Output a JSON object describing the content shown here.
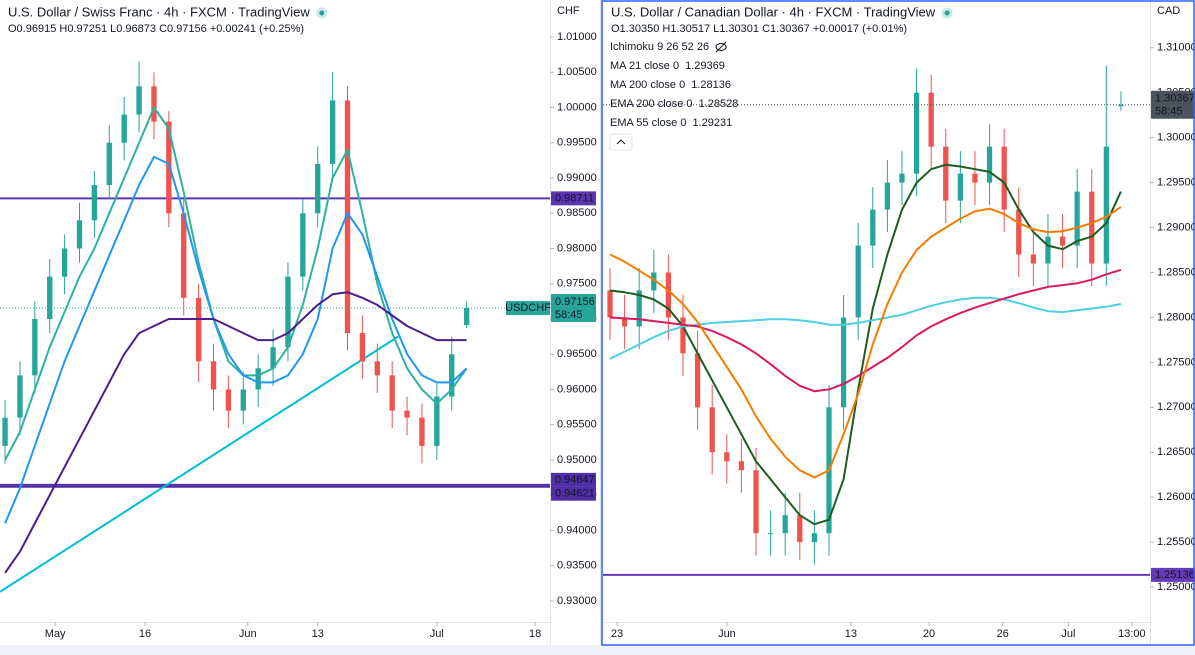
{
  "chart_data": [
    {
      "type": "candlestick",
      "title": "U.S. Dollar / Swiss Franc · 4h · FXCM · TradingView",
      "ohlc": "O0.96915 H0.97251 L0.96873 C0.97156 +0.00241 (+0.25%)",
      "unit": "CHF",
      "xlim": [
        -0.34,
        36.6
      ],
      "xticks": [
        {
          "value": 3.36,
          "label": "May"
        },
        {
          "value": 9.4,
          "label": "16"
        },
        {
          "value": 16.3,
          "label": "Jun"
        },
        {
          "value": 21,
          "label": "13"
        },
        {
          "value": 29,
          "label": "Jul"
        },
        {
          "value": 35.6,
          "label": "18"
        }
      ],
      "ylim": [
        0.9273,
        1.01525
      ],
      "yticks": [
        {
          "value": 0.93,
          "label": "0.93000"
        },
        {
          "value": 0.935,
          "label": "0.93500"
        },
        {
          "value": 0.94,
          "label": "0.94000"
        },
        {
          "value": 0.945,
          "label": "0.94500"
        },
        {
          "value": 0.95,
          "label": "0.95000"
        },
        {
          "value": 0.955,
          "label": "0.95500"
        },
        {
          "value": 0.96,
          "label": "0.96000"
        },
        {
          "value": 0.965,
          "label": "0.96500"
        },
        {
          "value": 0.97,
          "label": "0.97000"
        },
        {
          "value": 0.975,
          "label": "0.97500"
        },
        {
          "value": 0.98,
          "label": "0.98000"
        },
        {
          "value": 0.985,
          "label": "0.98500"
        },
        {
          "value": 0.99,
          "label": "0.99000"
        },
        {
          "value": 0.995,
          "label": "0.99500"
        },
        {
          "value": 1.0,
          "label": "1.00000"
        },
        {
          "value": 1.005,
          "label": "1.00500"
        },
        {
          "value": 1.01,
          "label": "1.01000"
        }
      ],
      "grid": false,
      "up_color": "#26a69a",
      "down_color": "#ef5350",
      "open": [
        0.952,
        0.956,
        0.962,
        0.97,
        0.976,
        0.98,
        0.984,
        0.989,
        0.995,
        0.999,
        1.003,
        0.998,
        0.985,
        0.973,
        0.964,
        0.96,
        0.957,
        0.96,
        0.963,
        0.966,
        0.976,
        0.985,
        0.992,
        1.001,
        0.968,
        0.964,
        0.962,
        0.957,
        0.956,
        0.952,
        0.959,
        0.96915
      ],
      "high": [
        0.9585,
        0.964,
        0.9725,
        0.9785,
        0.982,
        0.9865,
        0.991,
        0.9975,
        1.0015,
        1.0065,
        1.005,
        0.9995,
        0.987,
        0.975,
        0.9665,
        0.962,
        0.9625,
        0.965,
        0.9685,
        0.978,
        0.987,
        0.9945,
        1.005,
        1.003,
        0.9705,
        0.9665,
        0.964,
        0.959,
        0.958,
        0.961,
        0.9675,
        0.97251
      ],
      "low": [
        0.9495,
        0.9535,
        0.9595,
        0.968,
        0.9735,
        0.978,
        0.9815,
        0.987,
        0.9925,
        0.9965,
        0.9955,
        0.983,
        0.9705,
        0.961,
        0.957,
        0.9545,
        0.955,
        0.9575,
        0.9605,
        0.964,
        0.974,
        0.983,
        0.99,
        0.9655,
        0.9615,
        0.9595,
        0.9545,
        0.9535,
        0.9495,
        0.95,
        0.957,
        0.96873
      ],
      "close": [
        0.956,
        0.962,
        0.97,
        0.976,
        0.98,
        0.984,
        0.989,
        0.995,
        0.999,
        1.003,
        0.998,
        0.985,
        0.973,
        0.964,
        0.96,
        0.957,
        0.96,
        0.963,
        0.966,
        0.976,
        0.985,
        0.992,
        1.001,
        0.968,
        0.964,
        0.962,
        0.957,
        0.956,
        0.952,
        0.959,
        0.965,
        0.97156
      ],
      "series": [
        {
          "color": "#2bb3a0",
          "values": [
            0.95,
            0.954,
            0.96,
            0.966,
            0.971,
            0.976,
            0.98,
            0.985,
            0.99,
            0.995,
            1.0,
            0.997,
            0.988,
            0.978,
            0.97,
            0.964,
            0.962,
            0.962,
            0.963,
            0.966,
            0.972,
            0.98,
            0.99,
            0.994,
            0.985,
            0.975,
            0.968,
            0.963,
            0.96,
            0.958,
            0.96,
            0.963
          ]
        },
        {
          "color": "#2196f3",
          "values": [
            0.941,
            0.946,
            0.952,
            0.958,
            0.964,
            0.969,
            0.974,
            0.979,
            0.984,
            0.989,
            0.993,
            0.992,
            0.985,
            0.977,
            0.97,
            0.965,
            0.962,
            0.961,
            0.961,
            0.962,
            0.965,
            0.97,
            0.98,
            0.985,
            0.982,
            0.976,
            0.97,
            0.965,
            0.962,
            0.961,
            0.961,
            0.963
          ]
        },
        {
          "color": "#4a1f8c",
          "values": [
            0.934,
            0.937,
            0.941,
            0.945,
            0.949,
            0.953,
            0.957,
            0.961,
            0.965,
            0.968,
            0.969,
            0.97,
            0.97,
            0.97,
            0.97,
            0.969,
            0.968,
            0.967,
            0.967,
            0.968,
            0.97,
            0.972,
            0.9735,
            0.9738,
            0.973,
            0.972,
            0.9705,
            0.969,
            0.968,
            0.967,
            0.967,
            0.967
          ]
        }
      ],
      "trendlines": [
        {
          "color": "#00bcd4",
          "from": [
            -0.34,
            0.9313
          ],
          "to": [
            26.4,
            0.9675
          ]
        }
      ],
      "levels": [
        {
          "value": 0.98711,
          "color": "#5e35b1"
        },
        {
          "value": 0.94647,
          "color": "#512da8"
        },
        {
          "value": 0.94621,
          "color": "#512da8"
        }
      ],
      "last": {
        "value": 0.97156,
        "symbol": "USDCHF",
        "timer": "58:45",
        "color": "#26a69a"
      }
    },
    {
      "type": "candlestick",
      "title": "U.S. Dollar / Canadian Dollar · 4h · FXCM · TradingView",
      "ohlc": "O1.30350 H1.30517 L1.30301 C1.30367 +0.00017 (+0.01%)",
      "unit": "CAD",
      "xlim": [
        -0.48,
        36.99
      ],
      "xticks": [
        {
          "value": 0.48,
          "label": "23"
        },
        {
          "value": 8.01,
          "label": "Jun"
        },
        {
          "value": 16.5,
          "label": "13"
        },
        {
          "value": 21.85,
          "label": "20"
        },
        {
          "value": 26.9,
          "label": "26"
        },
        {
          "value": 31.4,
          "label": "Jul"
        },
        {
          "value": 35.75,
          "label": "13:00"
        }
      ],
      "ylim": [
        1.24634,
        1.31532
      ],
      "yticks": [
        {
          "value": 1.25,
          "label": "1.25000"
        },
        {
          "value": 1.255,
          "label": "1.25500"
        },
        {
          "value": 1.26,
          "label": "1.26000"
        },
        {
          "value": 1.265,
          "label": "1.26500"
        },
        {
          "value": 1.27,
          "label": "1.27000"
        },
        {
          "value": 1.275,
          "label": "1.27500"
        },
        {
          "value": 1.28,
          "label": "1.28000"
        },
        {
          "value": 1.285,
          "label": "1.28500"
        },
        {
          "value": 1.29,
          "label": "1.29000"
        },
        {
          "value": 1.295,
          "label": "1.29500"
        },
        {
          "value": 1.3,
          "label": "1.30000"
        },
        {
          "value": 1.305,
          "label": "1.30500"
        },
        {
          "value": 1.31,
          "label": "1.31000"
        }
      ],
      "grid": false,
      "up_color": "#26a69a",
      "down_color": "#ef5350",
      "indicator": "Ichimoku 9 26 52 26",
      "open": [
        1.283,
        1.28,
        1.279,
        1.283,
        1.285,
        1.28,
        1.276,
        1.27,
        1.265,
        1.264,
        1.263,
        1.256,
        1.256,
        1.258,
        1.255,
        1.256,
        1.27,
        1.28,
        1.288,
        1.292,
        1.295,
        1.296,
        1.305,
        1.299,
        1.293,
        1.296,
        1.295,
        1.299,
        1.292,
        1.287,
        1.286,
        1.289,
        1.288,
        1.294,
        1.286,
        1.3035
      ],
      "high": [
        1.2855,
        1.2825,
        1.2855,
        1.2875,
        1.287,
        1.2825,
        1.2785,
        1.2725,
        1.267,
        1.2665,
        1.2655,
        1.2585,
        1.2605,
        1.2605,
        1.2585,
        1.2725,
        1.2825,
        1.2905,
        1.2945,
        1.2975,
        1.2985,
        1.3077,
        1.307,
        1.301,
        1.2985,
        1.2985,
        1.3015,
        1.301,
        1.2945,
        1.2895,
        1.2915,
        1.2915,
        1.2965,
        1.2965,
        1.308,
        1.30517
      ],
      "low": [
        1.2775,
        1.2765,
        1.2765,
        1.2805,
        1.2775,
        1.2735,
        1.2675,
        1.2625,
        1.2615,
        1.2605,
        1.2535,
        1.2535,
        1.2535,
        1.253,
        1.2525,
        1.2535,
        1.2675,
        1.2775,
        1.2855,
        1.2895,
        1.2925,
        1.2935,
        1.2965,
        1.2905,
        1.2905,
        1.2925,
        1.2925,
        1.2895,
        1.2845,
        1.2835,
        1.2835,
        1.2855,
        1.2855,
        1.2835,
        1.2835,
        1.30301
      ],
      "close": [
        1.28,
        1.279,
        1.283,
        1.285,
        1.28,
        1.276,
        1.27,
        1.265,
        1.264,
        1.263,
        1.256,
        1.256,
        1.258,
        1.255,
        1.256,
        1.27,
        1.28,
        1.288,
        1.292,
        1.295,
        1.296,
        1.305,
        1.299,
        1.293,
        1.296,
        1.295,
        1.299,
        1.292,
        1.287,
        1.286,
        1.289,
        1.288,
        1.294,
        1.286,
        1.299,
        1.30367
      ],
      "series": [
        {
          "name": "MA 21 close 0",
          "last": 1.29369,
          "color": "#1b5e20",
          "values": [
            1.283,
            1.2828,
            1.2825,
            1.282,
            1.281,
            1.279,
            1.276,
            1.273,
            1.27,
            1.267,
            1.264,
            1.262,
            1.26,
            1.258,
            1.257,
            1.2575,
            1.262,
            1.272,
            1.281,
            1.287,
            1.292,
            1.295,
            1.2965,
            1.297,
            1.2968,
            1.2965,
            1.2962,
            1.295,
            1.292,
            1.2895,
            1.288,
            1.2876,
            1.2885,
            1.289,
            1.2905,
            1.294
          ]
        },
        {
          "name": "MA 200 close 0",
          "last": 1.28136,
          "color": "#4dd0e1",
          "values": [
            1.2754,
            1.2762,
            1.277,
            1.2778,
            1.2785,
            1.279,
            1.2792,
            1.2794,
            1.2795,
            1.2796,
            1.2797,
            1.2798,
            1.2798,
            1.2797,
            1.2795,
            1.2792,
            1.2792,
            1.2794,
            1.2797,
            1.28,
            1.2803,
            1.2808,
            1.2813,
            1.2817,
            1.282,
            1.2822,
            1.2822,
            1.282,
            1.2816,
            1.2811,
            1.2807,
            1.2806,
            1.2808,
            1.281,
            1.2812,
            1.2815
          ]
        },
        {
          "name": "EMA 200 close 0",
          "last": 1.28528,
          "color": "#d81b60",
          "values": [
            1.28,
            1.2799,
            1.2798,
            1.2796,
            1.2794,
            1.2792,
            1.279,
            1.2785,
            1.2778,
            1.277,
            1.276,
            1.2748,
            1.2735,
            1.2724,
            1.2718,
            1.272,
            1.2726,
            1.2735,
            1.2745,
            1.2755,
            1.2767,
            1.278,
            1.279,
            1.2798,
            1.2805,
            1.2811,
            1.2816,
            1.2821,
            1.2826,
            1.283,
            1.2834,
            1.2836,
            1.2838,
            1.2842,
            1.2848,
            1.2853
          ]
        },
        {
          "name": "EMA 55 close 0",
          "last": 1.29231,
          "color": "#f57c00",
          "values": [
            1.287,
            1.2862,
            1.2852,
            1.2842,
            1.283,
            1.2815,
            1.2795,
            1.277,
            1.2745,
            1.272,
            1.269,
            1.2665,
            1.2645,
            1.263,
            1.2622,
            1.263,
            1.267,
            1.2715,
            1.277,
            1.2815,
            1.285,
            1.2875,
            1.289,
            1.29,
            1.291,
            1.2918,
            1.2921,
            1.2915,
            1.2905,
            1.2898,
            1.2895,
            1.2896,
            1.29,
            1.2905,
            1.2912,
            1.2923
          ]
        }
      ],
      "levels": [
        {
          "value": 1.25136,
          "color": "#673ab7"
        }
      ],
      "last": {
        "value": 1.30367,
        "timer": "58:45",
        "color": "#4c525e"
      }
    }
  ]
}
